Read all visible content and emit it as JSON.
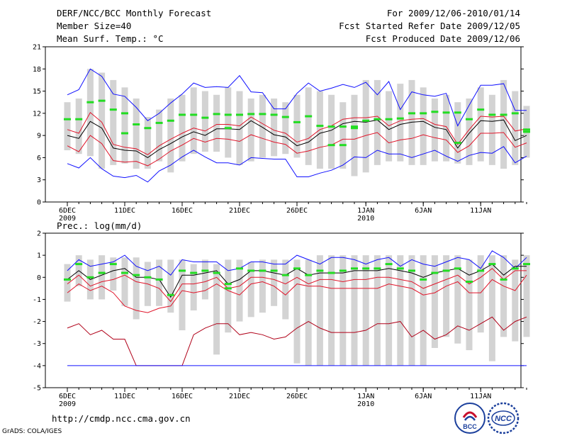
{
  "header": {
    "title": "DERF/NCC/BCC Monthly Forecast",
    "member_size": "Member Size=40",
    "variable": "Mean Surf. Temp.: °C",
    "period": "For 2009/12/06-2010/01/14",
    "started": "Fcst Started Refer Date 2009/12/05",
    "produced": "Fcst Produced Date 2009/12/06"
  },
  "footer": {
    "url": "http://cmdp.ncc.cma.gov.cn",
    "credit": "GrADS: COLA/IGES",
    "logo_bcc": "BCC",
    "logo_ncc": "NCC"
  },
  "colors": {
    "box": "#d3d3d3",
    "green": "#22dd22",
    "blue": "#1010ff",
    "red": "#e0152a",
    "darkred": "#b00018",
    "black": "#000000"
  },
  "chart_data": [
    {
      "type": "box",
      "title": "Mean Surf. Temp.: °C",
      "ylim": [
        0,
        21
      ],
      "yticks": [
        0,
        3,
        6,
        9,
        12,
        15,
        18,
        21
      ],
      "ytick_labels": [
        "0",
        "3",
        "6",
        "9",
        "12",
        "15",
        "18",
        "21"
      ],
      "xtick_labels": [
        "6DEC\n2009",
        "11DEC",
        "16DEC",
        "21DEC",
        "26DEC",
        "1JAN\n2010",
        "6JAN",
        "11JAN"
      ],
      "xtick_days": [
        1,
        6,
        11,
        16,
        21,
        27,
        32,
        37
      ],
      "box_low": [
        7.0,
        6.5,
        6.2,
        4.5,
        5.0,
        5.2,
        4.5,
        4.5,
        5.5,
        4.0,
        5.5,
        6.5,
        6.8,
        6.8,
        6.0,
        5.0,
        5.5,
        6.0,
        6.2,
        6.5,
        6.0,
        5.0,
        4.5,
        4.5,
        4.5,
        3.5,
        4.0,
        5.0,
        5.5,
        5.5,
        5.0,
        5.0,
        5.5,
        5.5,
        5.2,
        5.0,
        5.5,
        5.0,
        4.5,
        5.0,
        6.0
      ],
      "box_high": [
        13.5,
        14.0,
        18.0,
        17.5,
        16.5,
        15.5,
        14.0,
        11.5,
        12.5,
        14.0,
        14.5,
        15.5,
        15.0,
        14.5,
        15.5,
        15.0,
        14.0,
        14.5,
        14.0,
        13.5,
        14.5,
        15.5,
        15.0,
        14.5,
        13.5,
        14.5,
        16.5,
        16.5,
        15.0,
        16.0,
        16.5,
        15.5,
        14.0,
        14.5,
        13.5,
        14.0,
        15.5,
        14.5,
        16.5,
        15.0,
        13.0
      ],
      "green_top": [
        11.2,
        11.2,
        13.5,
        13.7,
        12.5,
        12.0,
        10.5,
        10.0,
        10.7,
        11.0,
        11.8,
        11.8,
        11.4,
        11.9,
        11.8,
        11.8,
        11.9,
        11.9,
        11.8,
        11.5,
        10.8,
        11.6,
        10.3,
        10.2,
        10.2,
        10.2,
        11.0,
        11.2,
        11.2,
        11.3,
        12.0,
        12.0,
        12.2,
        12.1,
        12.1,
        11.2,
        12.5,
        11.8,
        11.8,
        12.0,
        9.5
      ],
      "green_bottom": [
        null,
        null,
        null,
        null,
        null,
        9.3,
        null,
        null,
        null,
        null,
        null,
        null,
        null,
        null,
        null,
        null,
        null,
        null,
        null,
        null,
        null,
        null,
        null,
        null,
        null,
        null,
        null,
        null,
        null,
        null,
        null,
        null,
        null,
        null,
        null,
        null,
        null,
        null,
        null,
        null,
        null
      ],
      "green_mid": [
        null,
        null,
        null,
        null,
        null,
        null,
        null,
        null,
        null,
        null,
        null,
        null,
        null,
        null,
        10.0,
        null,
        null,
        null,
        null,
        null,
        null,
        null,
        null,
        7.7,
        7.7,
        10.0,
        null,
        null,
        null,
        null,
        null,
        null,
        null,
        null,
        8.0,
        null,
        null,
        null,
        null,
        null,
        9.8
      ],
      "series": [
        {
          "name": "max",
          "color": "blue",
          "values": [
            14.5,
            15.2,
            18.0,
            17.0,
            14.6,
            14.3,
            12.8,
            11.0,
            12.0,
            13.4,
            14.6,
            16.1,
            15.5,
            15.6,
            15.5,
            17.1,
            14.9,
            14.8,
            12.6,
            12.6,
            14.7,
            16.1,
            15.0,
            15.4,
            15.9,
            15.5,
            16.2,
            14.5,
            16.3,
            12.5,
            14.9,
            14.5,
            14.3,
            14.7,
            10.3,
            13.1,
            15.8,
            15.8,
            16.0,
            12.4,
            12.4
          ]
        },
        {
          "name": "p75",
          "color": "red",
          "values": [
            9.8,
            9.3,
            12.1,
            10.8,
            7.8,
            7.4,
            7.2,
            6.4,
            7.6,
            8.5,
            9.3,
            10.0,
            9.6,
            10.5,
            10.5,
            10.3,
            11.5,
            10.6,
            9.7,
            9.3,
            8.1,
            8.6,
            9.8,
            10.3,
            11.2,
            11.4,
            11.4,
            11.6,
            10.3,
            11.0,
            11.2,
            11.3,
            10.5,
            10.2,
            7.8,
            9.8,
            11.6,
            11.5,
            11.6,
            9.6,
            9.9
          ]
        },
        {
          "name": "mean",
          "color": "black",
          "values": [
            9.0,
            8.6,
            10.9,
            10.0,
            7.3,
            7.0,
            6.9,
            6.0,
            7.1,
            7.9,
            8.8,
            9.5,
            9.0,
            9.9,
            9.9,
            9.8,
            11.0,
            10.1,
            9.1,
            8.8,
            7.6,
            8.1,
            9.3,
            9.7,
            10.6,
            10.9,
            10.8,
            11.1,
            9.8,
            10.5,
            10.8,
            10.9,
            10.1,
            9.8,
            7.3,
            9.3,
            11.0,
            10.9,
            11.1,
            8.3,
            9.0
          ]
        },
        {
          "name": "p25",
          "color": "red",
          "values": [
            7.6,
            6.8,
            9.0,
            7.9,
            5.6,
            5.4,
            5.5,
            4.9,
            5.8,
            6.9,
            7.7,
            8.6,
            8.1,
            8.6,
            8.5,
            8.2,
            9.1,
            8.6,
            8.1,
            7.8,
            6.6,
            6.9,
            7.4,
            7.7,
            8.5,
            8.5,
            9.0,
            9.4,
            8.0,
            8.4,
            8.6,
            9.1,
            8.7,
            8.4,
            6.7,
            7.6,
            9.3,
            9.3,
            9.4,
            7.4,
            8.0
          ]
        },
        {
          "name": "min",
          "color": "blue",
          "values": [
            5.2,
            4.6,
            6.0,
            4.5,
            3.5,
            3.3,
            3.6,
            2.7,
            4.2,
            5.0,
            6.1,
            7.0,
            6.1,
            5.3,
            5.3,
            5.0,
            6.0,
            5.9,
            5.8,
            5.8,
            3.4,
            3.4,
            3.9,
            4.3,
            5.0,
            6.1,
            6.0,
            7.0,
            6.5,
            6.5,
            6.0,
            6.5,
            7.0,
            6.2,
            5.5,
            6.3,
            6.7,
            6.6,
            7.5,
            5.3,
            6.2
          ]
        }
      ]
    },
    {
      "type": "box",
      "title": "Prec.: log(mm/d)",
      "ylim": [
        -5,
        2
      ],
      "yticks": [
        -5,
        -4,
        -3,
        -2,
        -1,
        0,
        1,
        2
      ],
      "ytick_labels": [
        "-5",
        "-4",
        "-3",
        "-2",
        "-1",
        "0",
        "1",
        "2"
      ],
      "xtick_labels": [
        "6DEC\n2009",
        "11DEC",
        "16DEC",
        "21DEC",
        "26DEC",
        "1JAN\n2010",
        "6JAN",
        "11JAN"
      ],
      "xtick_days": [
        1,
        6,
        11,
        16,
        21,
        27,
        32,
        37
      ],
      "box_low": [
        -1.1,
        -0.4,
        -1.0,
        -1.0,
        -0.6,
        -1.3,
        -1.9,
        -1.3,
        -1.3,
        -1.6,
        -2.4,
        -1.5,
        -1.0,
        -3.5,
        -2.5,
        -2.0,
        -1.8,
        -1.6,
        -1.3,
        -1.9,
        -3.9,
        -4.0,
        -4.0,
        -4.0,
        -4.0,
        -4.0,
        -4.0,
        -4.0,
        -4.0,
        -4.0,
        -4.0,
        -4.0,
        -3.2,
        -2.7,
        -3.0,
        -3.3,
        -2.5,
        -3.8,
        -2.7,
        -2.9,
        -2.7
      ],
      "box_high": [
        0.6,
        1.0,
        0.8,
        1.0,
        0.9,
        0.9,
        0.9,
        0.7,
        0.8,
        0.8,
        0.8,
        0.6,
        0.8,
        0.6,
        0.8,
        0.8,
        0.7,
        0.8,
        0.8,
        0.8,
        0.8,
        0.8,
        1.0,
        1.0,
        1.0,
        1.0,
        1.0,
        1.0,
        1.0,
        1.0,
        1.0,
        1.0,
        1.0,
        1.0,
        1.0,
        0.8,
        1.0,
        1.0,
        1.0,
        0.8,
        1.0
      ],
      "green_top": [
        -0.1,
        0.6,
        0.0,
        0.2,
        0.6,
        0.2,
        0.1,
        0.0,
        -0.1,
        -0.8,
        0.3,
        0.2,
        0.3,
        0.2,
        -0.3,
        0.4,
        0.3,
        0.3,
        0.3,
        0.1,
        0.4,
        0.1,
        0.3,
        0.2,
        0.3,
        0.4,
        0.4,
        0.4,
        0.6,
        0.4,
        0.3,
        -0.1,
        0.2,
        0.3,
        0.4,
        -0.2,
        0.3,
        0.6,
        -0.1,
        0.4,
        0.6
      ],
      "green_bottom": [
        null,
        null,
        null,
        null,
        null,
        null,
        null,
        null,
        null,
        null,
        null,
        null,
        null,
        null,
        -0.5,
        null,
        null,
        null,
        null,
        null,
        null,
        null,
        null,
        null,
        null,
        null,
        null,
        null,
        null,
        null,
        null,
        null,
        null,
        null,
        null,
        null,
        null,
        null,
        null,
        null,
        null
      ],
      "green_mid": [],
      "series": [
        {
          "name": "max",
          "color": "blue",
          "values": [
            0.3,
            0.8,
            0.5,
            0.6,
            0.7,
            1.0,
            0.5,
            0.3,
            0.5,
            0.1,
            0.8,
            0.7,
            0.7,
            0.7,
            0.3,
            0.4,
            0.7,
            0.7,
            0.6,
            0.6,
            1.0,
            0.8,
            0.6,
            0.9,
            0.9,
            0.8,
            0.6,
            0.8,
            0.9,
            0.5,
            0.8,
            0.6,
            0.5,
            0.7,
            0.9,
            0.8,
            0.4,
            1.2,
            0.9,
            0.4,
            0.9
          ]
        },
        {
          "name": "p75",
          "color": "red",
          "values": [
            -0.3,
            0.1,
            -0.4,
            -0.2,
            -0.1,
            0.1,
            -0.2,
            -0.3,
            -0.5,
            -1.1,
            -0.3,
            -0.3,
            -0.2,
            0.0,
            -0.5,
            -0.4,
            0.0,
            0.0,
            -0.1,
            -0.3,
            0.0,
            -0.3,
            -0.1,
            -0.1,
            -0.2,
            -0.1,
            -0.1,
            0.0,
            0.0,
            -0.1,
            -0.2,
            -0.5,
            -0.3,
            -0.1,
            0.1,
            -0.3,
            0.0,
            0.4,
            -0.1,
            0.3,
            0.3
          ]
        },
        {
          "name": "mean",
          "color": "black",
          "values": [
            -0.1,
            0.3,
            -0.1,
            0.1,
            0.3,
            0.4,
            0.0,
            0.0,
            -0.1,
            -0.9,
            0.1,
            0.1,
            0.2,
            0.3,
            -0.3,
            -0.1,
            0.3,
            0.3,
            0.2,
            0.1,
            0.4,
            0.1,
            0.2,
            0.2,
            0.2,
            0.3,
            0.3,
            0.3,
            0.4,
            0.3,
            0.2,
            0.0,
            0.2,
            0.3,
            0.4,
            0.1,
            0.3,
            0.6,
            0.1,
            0.5,
            0.5
          ]
        },
        {
          "name": "p25",
          "color": "red",
          "values": [
            -0.7,
            -0.3,
            -0.6,
            -0.4,
            -0.7,
            -1.3,
            -1.5,
            -1.6,
            -1.4,
            -1.3,
            -0.6,
            -0.7,
            -0.6,
            -0.3,
            -0.6,
            -0.8,
            -0.3,
            -0.2,
            -0.4,
            -0.8,
            -0.3,
            -0.4,
            -0.4,
            -0.5,
            -0.5,
            -0.5,
            -0.5,
            -0.5,
            -0.3,
            -0.4,
            -0.5,
            -0.8,
            -0.7,
            -0.4,
            -0.2,
            -0.7,
            -0.7,
            -0.1,
            -0.4,
            -0.6,
            0.1
          ]
        },
        {
          "name": "p10",
          "color": "darkred",
          "values": [
            -2.3,
            -2.1,
            -2.6,
            -2.4,
            -2.8,
            -2.8,
            -4.0,
            -4.0,
            -4.0,
            -4.0,
            -4.0,
            -2.6,
            -2.3,
            -2.1,
            -2.1,
            -2.6,
            -2.5,
            -2.6,
            -2.8,
            -2.7,
            -2.3,
            -2.0,
            -2.3,
            -2.5,
            -2.5,
            -2.5,
            -2.4,
            -2.1,
            -2.1,
            -2.0,
            -2.7,
            -2.4,
            -2.8,
            -2.6,
            -2.2,
            -2.4,
            -2.1,
            -1.8,
            -2.4,
            -2.0,
            -1.8
          ]
        },
        {
          "name": "min",
          "color": "blue",
          "values": [
            -4.0,
            -4.0,
            -4.0,
            -4.0,
            -4.0,
            -4.0,
            -4.0,
            -4.0,
            -4.0,
            -4.0,
            -4.0,
            -4.0,
            -4.0,
            -4.0,
            -4.0,
            -4.0,
            -4.0,
            -4.0,
            -4.0,
            -4.0,
            -4.0,
            -4.0,
            -4.0,
            -4.0,
            -4.0,
            -4.0,
            -4.0,
            -4.0,
            -4.0,
            -4.0,
            -4.0,
            -4.0,
            -4.0,
            -4.0,
            -4.0,
            -4.0,
            -4.0,
            -4.0,
            -4.0,
            -4.0,
            -4.0
          ]
        }
      ]
    }
  ]
}
